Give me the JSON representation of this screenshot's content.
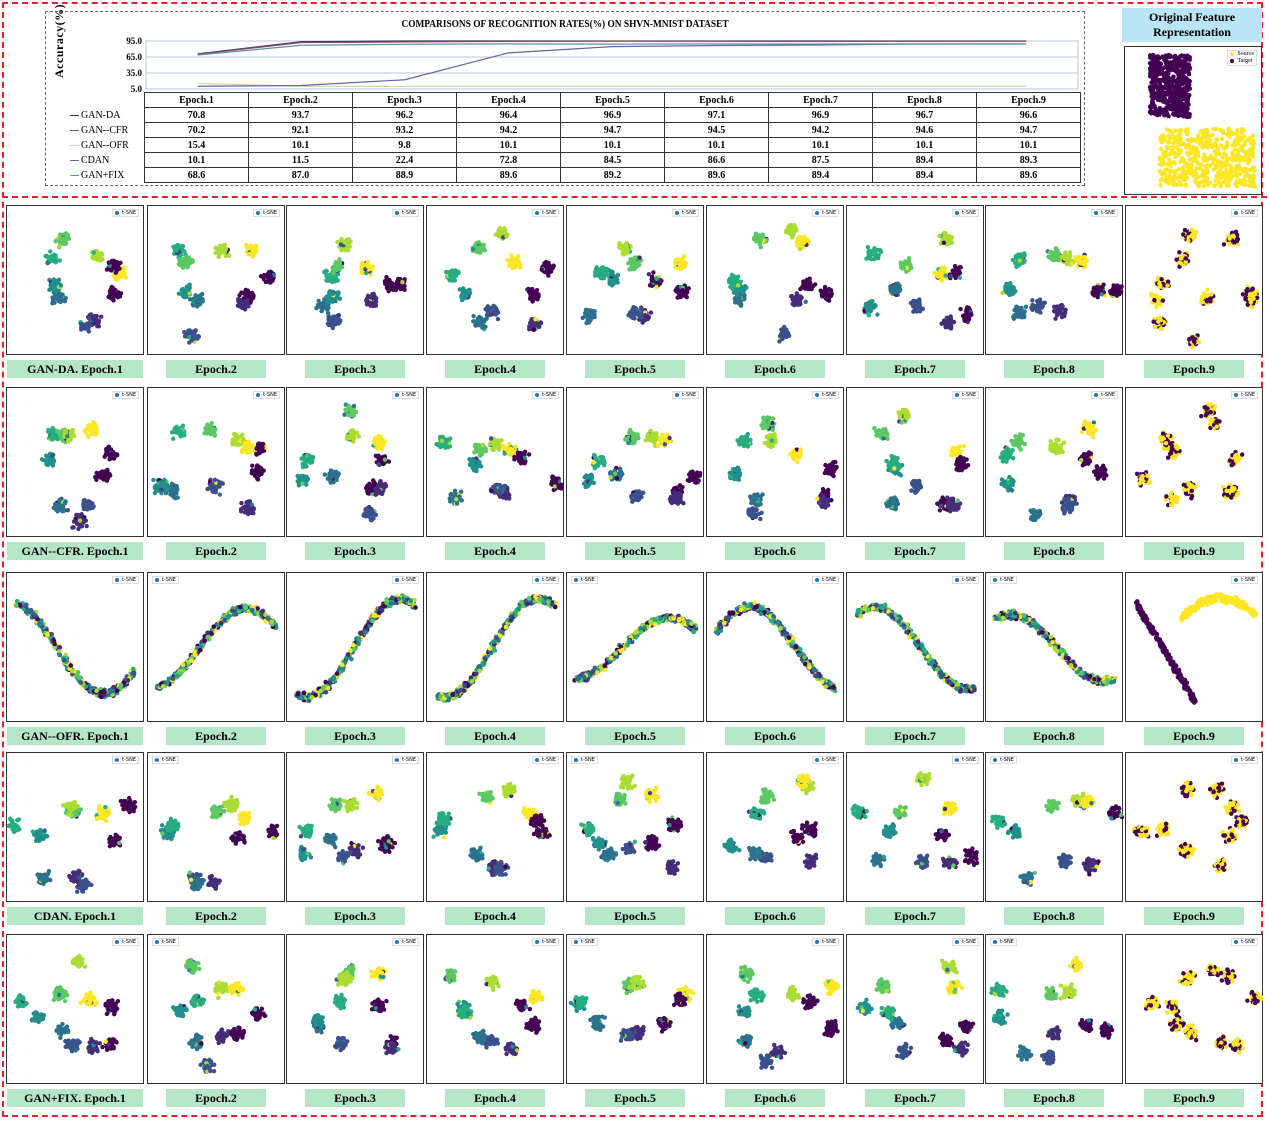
{
  "chart_data": {
    "type": "line",
    "title": "COMPARISONS OF RECOGNITION RATES(%) ON SHVN-MNIST DATASET",
    "ylabel": "Accuracy(%)",
    "yticks": [
      "95.0",
      "65.0",
      "35.0",
      "5.0"
    ],
    "ylim": [
      5,
      95
    ],
    "categories": [
      "Epoch.1",
      "Epoch.2",
      "Epoch.3",
      "Epoch.4",
      "Epoch.5",
      "Epoch.6",
      "Epoch.7",
      "Epoch.8",
      "Epoch.9"
    ],
    "series": [
      {
        "name": "GAN-DA",
        "color": "#3f2d5c",
        "values": [
          "70.8",
          "93.7",
          "96.2",
          "96.4",
          "96.9",
          "97.1",
          "96.9",
          "96.7",
          "96.6"
        ]
      },
      {
        "name": "GAN--CFR",
        "color": "#8a4a68",
        "values": [
          "70.2",
          "92.1",
          "93.2",
          "94.2",
          "94.7",
          "94.5",
          "94.2",
          "94.6",
          "94.7"
        ]
      },
      {
        "name": "GAN--OFR",
        "color": "#d6d6a8",
        "values": [
          "15.4",
          "10.1",
          "9.8",
          "10.1",
          "10.1",
          "10.1",
          "10.1",
          "10.1",
          "10.1"
        ]
      },
      {
        "name": "CDAN",
        "color": "#6c62a6",
        "values": [
          "10.1",
          "11.5",
          "22.4",
          "72.8",
          "84.5",
          "86.6",
          "87.5",
          "89.4",
          "89.3"
        ]
      },
      {
        "name": "GAN+FIX",
        "color": "#5c93a0",
        "values": [
          "68.6",
          "87.0",
          "88.9",
          "89.6",
          "89.2",
          "89.6",
          "89.4",
          "89.4",
          "89.6"
        ]
      }
    ]
  },
  "original": {
    "title_line1": "Original Feature",
    "title_line2": "Representation",
    "legend": [
      "Source",
      "Target"
    ]
  },
  "tsne_legend": "t-SNE",
  "rows": [
    {
      "method": "GAN-DA",
      "labels": [
        "GAN-DA. Epoch.1",
        "Epoch.2",
        "Epoch.3",
        "Epoch.4",
        "Epoch.5",
        "Epoch.6",
        "Epoch.7",
        "Epoch.8",
        "Epoch.9"
      ]
    },
    {
      "method": "GAN--CFR",
      "labels": [
        "GAN--CFR. Epoch.1",
        "Epoch.2",
        "Epoch.3",
        "Epoch.4",
        "Epoch.5",
        "Epoch.6",
        "Epoch.7",
        "Epoch.8",
        "Epoch.9"
      ]
    },
    {
      "method": "GAN--OFR",
      "labels": [
        "GAN--OFR. Epoch.1",
        "Epoch.2",
        "Epoch.3",
        "Epoch.4",
        "Epoch.5",
        "Epoch.6",
        "Epoch.7",
        "Epoch.8",
        "Epoch.9"
      ]
    },
    {
      "method": "CDAN",
      "labels": [
        "CDAN. Epoch.1",
        "Epoch.2",
        "Epoch.3",
        "Epoch.4",
        "Epoch.5",
        "Epoch.6",
        "Epoch.7",
        "Epoch.8",
        "Epoch.9"
      ]
    },
    {
      "method": "GAN+FIX",
      "labels": [
        "GAN+FIX. Epoch.1",
        "Epoch.2",
        "Epoch.3",
        "Epoch.4",
        "Epoch.5",
        "Epoch.6",
        "Epoch.7",
        "Epoch.8",
        "Epoch.9"
      ]
    }
  ]
}
